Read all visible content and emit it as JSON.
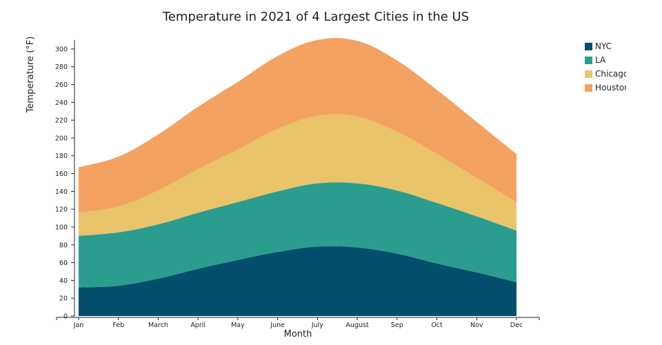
{
  "chart_data": {
    "type": "area",
    "stacked": true,
    "title": "Temperature in 2021 of 4 Largest Cities in the US",
    "xlabel": "Month",
    "ylabel": "Temperature (°F)",
    "ylim": [
      0,
      310
    ],
    "yticks": [
      "0",
      "20",
      "40",
      "60",
      "80",
      "100",
      "120",
      "140",
      "160",
      "180",
      "200",
      "220",
      "240",
      "260",
      "280",
      "300"
    ],
    "categories": [
      "Jan",
      "Feb",
      "March",
      "April",
      "May",
      "June",
      "July",
      "August",
      "Sep",
      "Oct",
      "Nov",
      "Dec"
    ],
    "grid": false,
    "legend_position": "top-right",
    "series": [
      {
        "name": "NYC",
        "color": "#024e6c",
        "values": [
          32,
          34,
          42,
          53,
          63,
          72,
          78,
          77,
          70,
          59,
          49,
          38
        ]
      },
      {
        "name": "LA",
        "color": "#2a9d8f",
        "values": [
          58,
          60,
          61,
          63,
          65,
          68,
          71,
          72,
          71,
          68,
          63,
          58
        ]
      },
      {
        "name": "Chicago",
        "color": "#e9c46a",
        "values": [
          26,
          29,
          38,
          49,
          59,
          70,
          76,
          75,
          66,
          55,
          43,
          32
        ]
      },
      {
        "name": "Houston",
        "color": "#f4a261",
        "values": [
          51,
          56,
          63,
          70,
          76,
          82,
          85,
          85,
          80,
          72,
          63,
          54
        ]
      }
    ]
  }
}
